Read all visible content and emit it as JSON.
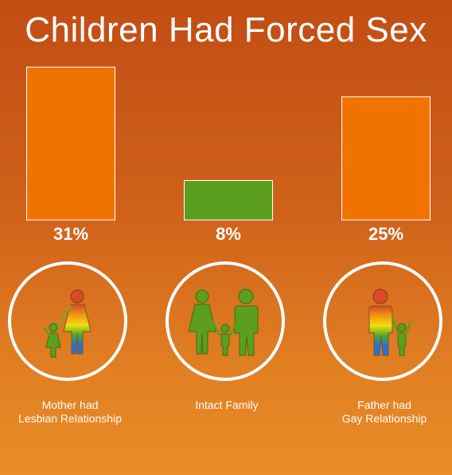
{
  "title": "Children Had Forced Sex",
  "chart_data": {
    "type": "bar",
    "categories": [
      "Mother had Lesbian Relationship",
      "Intact Family",
      "Father had Gay Relationship"
    ],
    "values": [
      31,
      8,
      25
    ],
    "value_labels": [
      "31%",
      "8%",
      "25%"
    ],
    "colors": [
      "#f07300",
      "#5c9e1e",
      "#f07300"
    ],
    "ylim": [
      0,
      32
    ],
    "grid": false
  },
  "captions": {
    "mother": "Mother had\nLesbian Relationship",
    "intact": "Intact Family",
    "father": "Father had\nGay Relationship"
  },
  "icons": {
    "mother": "mother-child-rainbow-icon",
    "intact": "family-green-icon",
    "father": "father-child-rainbow-icon"
  }
}
